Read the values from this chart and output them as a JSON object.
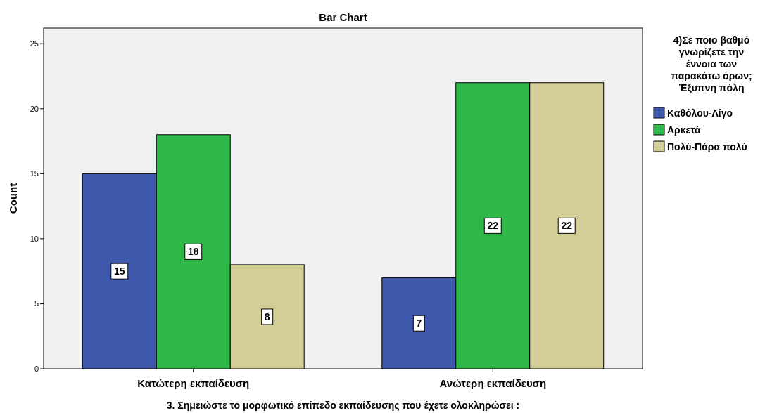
{
  "chart_data": {
    "type": "bar",
    "title": "Bar Chart",
    "xlabel": "3. Σημειώστε το μορφωτικό επίπεδο εκπαίδευσης που έχετε ολοκληρώσει :",
    "ylabel": "Count",
    "legend_title": "4)Σε ποιο βαθμό γνωρίζετε την έννοια των παρακάτω όρων; Έξυπνη πόλη",
    "categories": [
      "Κατώτερη εκπαίδευση",
      "Ανώτερη εκπαίδευση"
    ],
    "series": [
      {
        "name": "Καθόλου-Λίγο",
        "color": "#3e58ac",
        "values": [
          15,
          7
        ]
      },
      {
        "name": "Αρκετά",
        "color": "#2eb848",
        "values": [
          18,
          22
        ]
      },
      {
        "name": "Πολύ-Πάρα πολύ",
        "color": "#d3ce97",
        "values": [
          8,
          22
        ]
      }
    ],
    "ylim": [
      0,
      26.2
    ],
    "yticks": [
      0,
      5,
      10,
      15,
      20,
      25
    ],
    "grid": false,
    "legend": "right",
    "data_labels": true
  }
}
